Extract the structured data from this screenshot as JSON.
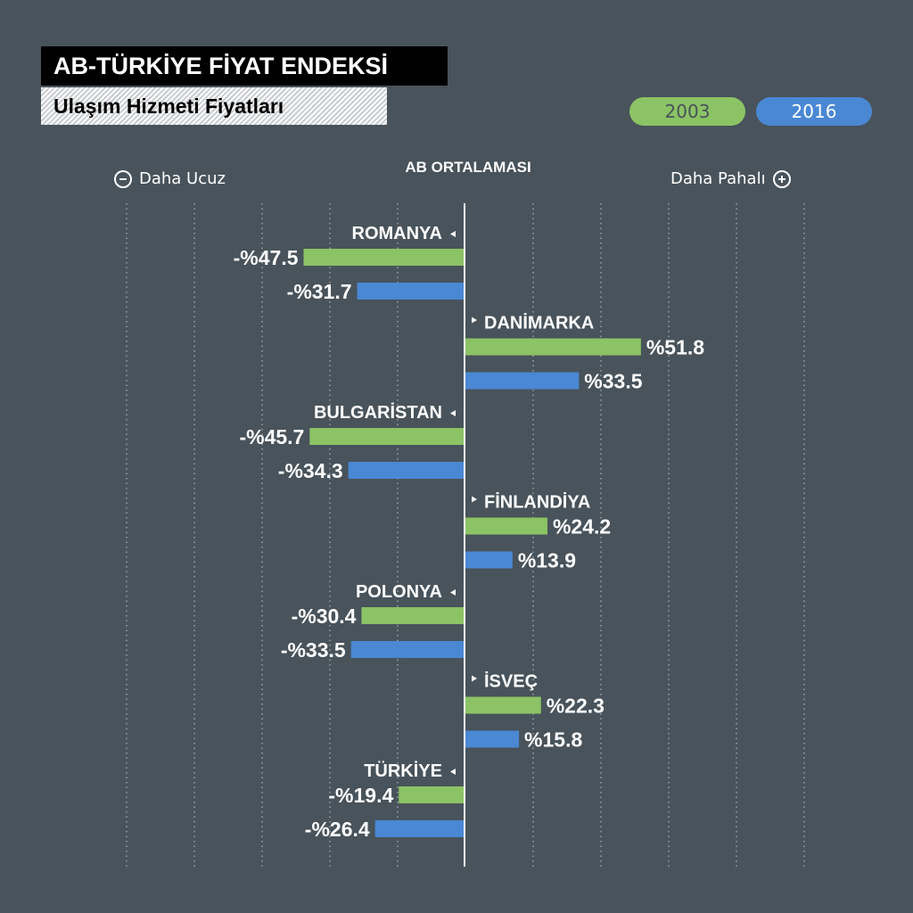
{
  "title": "AB-TÜRKİYE FİYAT ENDEKSİ",
  "subtitle": "Ulaşım Hizmeti Fiyatları",
  "legend": [
    {
      "label": "2003",
      "color": "#8cc365"
    },
    {
      "label": "2016",
      "color": "#4a88d4"
    }
  ],
  "left_label": "Daha Ucuz",
  "right_label": "Daha Pahalı",
  "center_label": "AB ORTALAMASI",
  "chart_data": {
    "type": "bar",
    "orientation": "horizontal",
    "baseline": 0,
    "xlim": [
      -50,
      52
    ],
    "series": [
      {
        "name": "2003",
        "color": "#8cc365"
      },
      {
        "name": "2016",
        "color": "#4a88d4"
      }
    ],
    "categories": [
      {
        "name": "ROMANYA",
        "values": [
          -47.5,
          -31.7
        ],
        "labels": [
          "-%47.5",
          "-%31.7"
        ]
      },
      {
        "name": "DANİMARKA",
        "values": [
          51.8,
          33.5
        ],
        "labels": [
          "%51.8",
          "%33.5"
        ]
      },
      {
        "name": "BULGARİSTAN",
        "values": [
          -45.7,
          -34.3
        ],
        "labels": [
          "-%45.7",
          "-%34.3"
        ]
      },
      {
        "name": "FİNLANDİYA",
        "values": [
          24.2,
          13.9
        ],
        "labels": [
          "%24.2",
          "%13.9"
        ]
      },
      {
        "name": "POLONYA",
        "values": [
          -30.4,
          -33.5
        ],
        "labels": [
          "-%30.4",
          "-%33.5"
        ]
      },
      {
        "name": "İSVEÇ",
        "values": [
          22.3,
          15.8
        ],
        "labels": [
          "%22.3",
          "%15.8"
        ]
      },
      {
        "name": "TÜRKİYE",
        "values": [
          -19.4,
          -26.4
        ],
        "labels": [
          "-%19.4",
          "-%26.4"
        ]
      }
    ],
    "grid": true
  }
}
